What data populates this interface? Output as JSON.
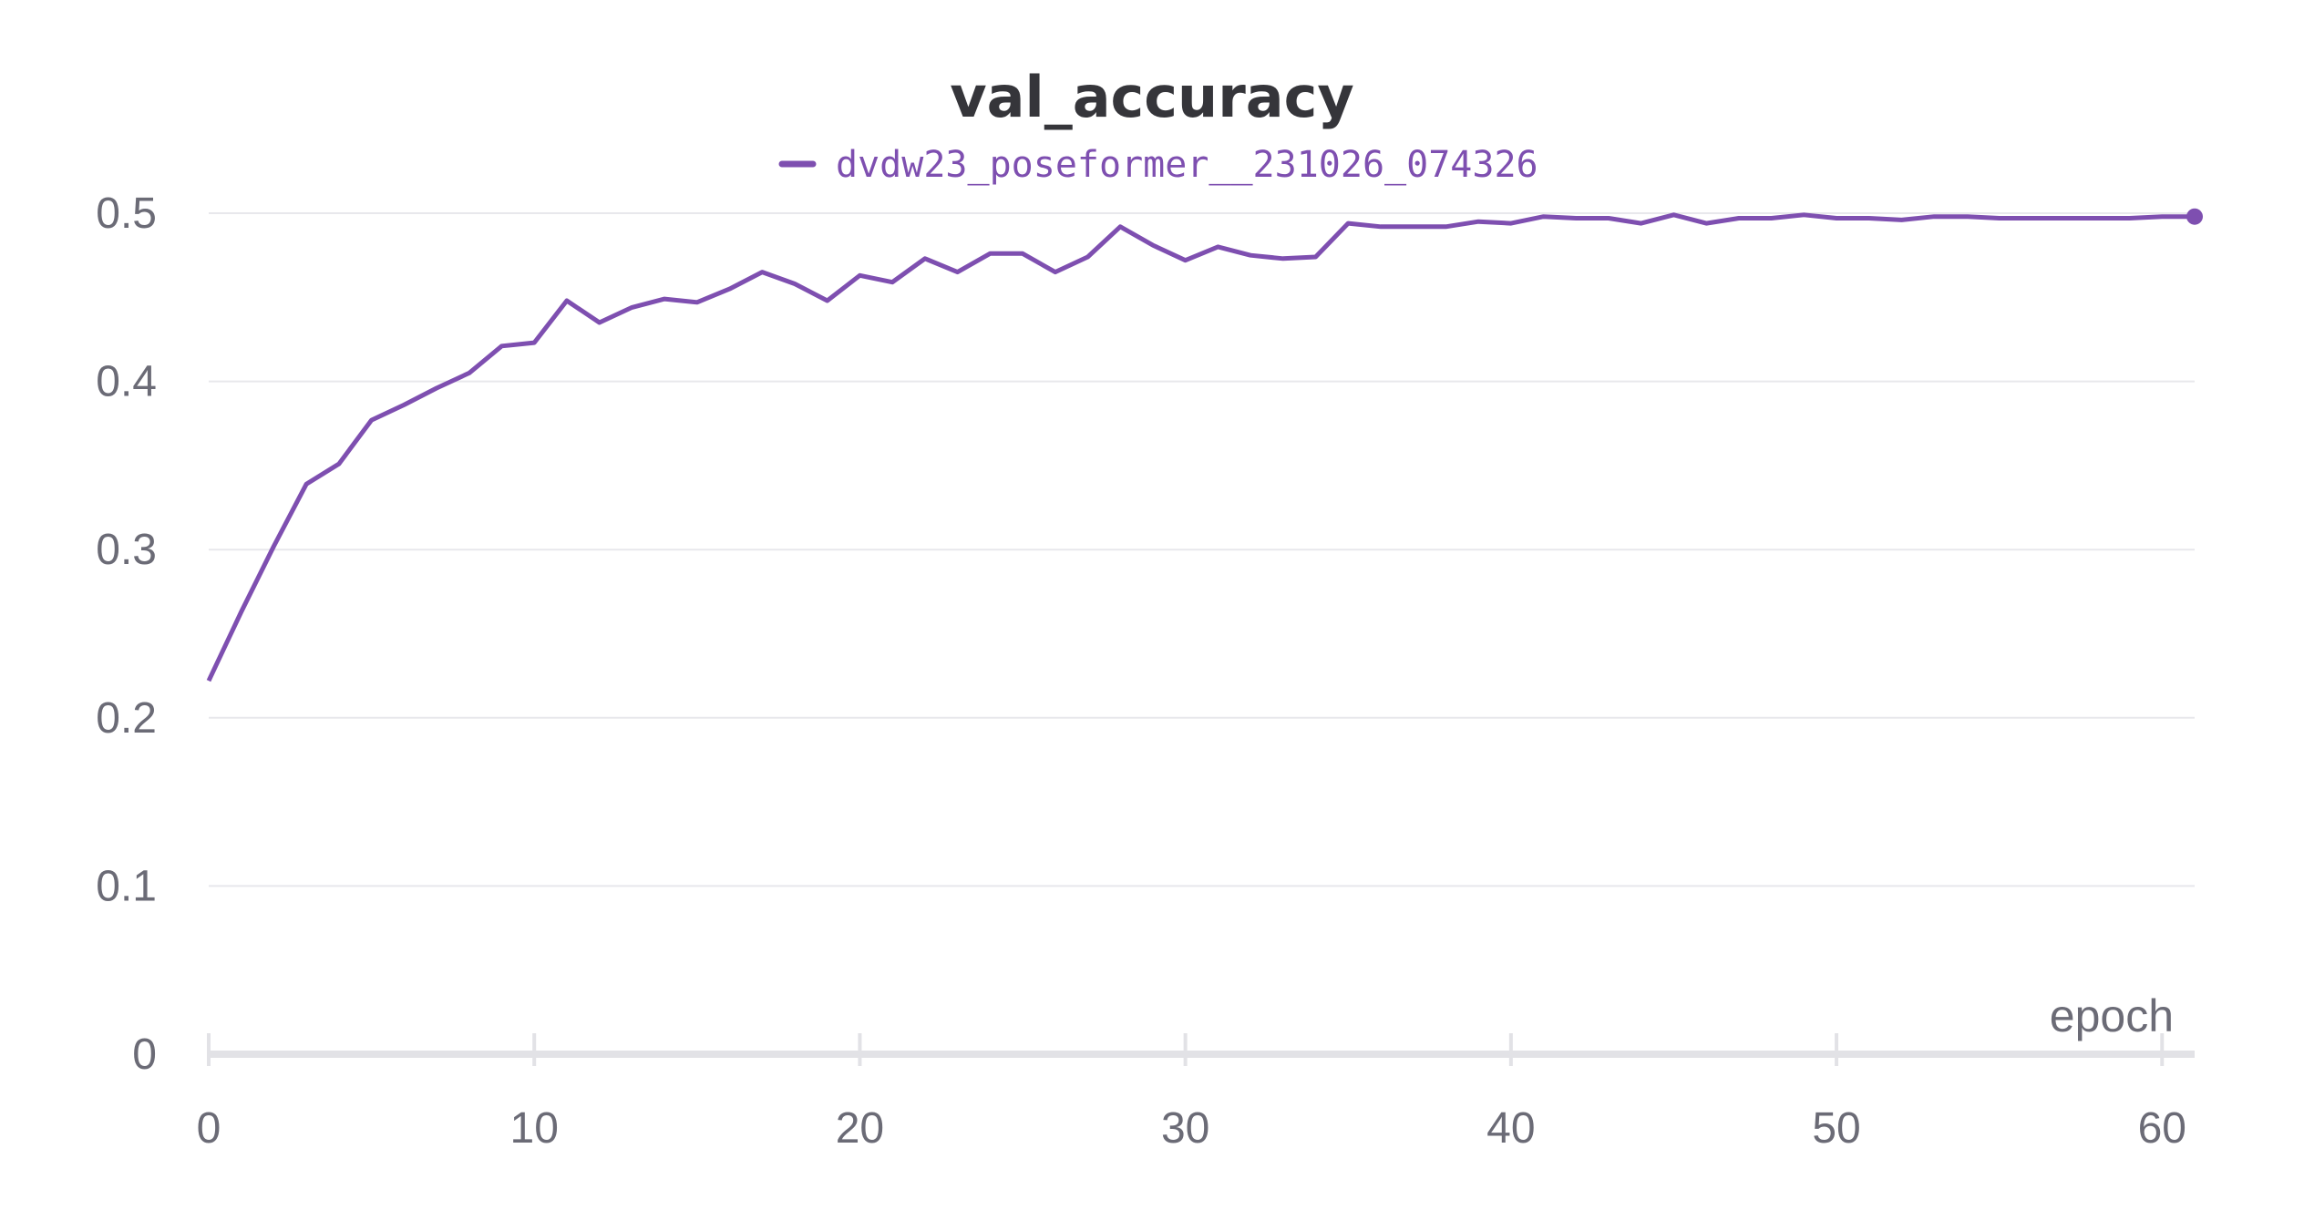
{
  "chart_data": {
    "type": "line",
    "title": "val_accuracy",
    "xlabel": "epoch",
    "ylabel": "",
    "xlim": [
      0,
      61
    ],
    "ylim": [
      0,
      0.5
    ],
    "x_ticks": [
      0,
      10,
      20,
      30,
      40,
      50,
      60
    ],
    "y_ticks": [
      0,
      0.1,
      0.2,
      0.3,
      0.4,
      0.5
    ],
    "y_tick_labels": [
      "0",
      "0.1",
      "0.2",
      "0.3",
      "0.4",
      "0.5"
    ],
    "grid": true,
    "legend_position": "top-center",
    "color": "#7e4fb0",
    "series": [
      {
        "name": "dvdw23_poseformer__231026_074326",
        "x": [
          0,
          1,
          2,
          3,
          4,
          5,
          6,
          7,
          8,
          9,
          10,
          11,
          12,
          13,
          14,
          15,
          16,
          17,
          18,
          19,
          20,
          21,
          22,
          23,
          24,
          25,
          26,
          27,
          28,
          29,
          30,
          31,
          32,
          33,
          34,
          35,
          36,
          37,
          38,
          39,
          40,
          41,
          42,
          43,
          44,
          45,
          46,
          47,
          48,
          49,
          50,
          51,
          52,
          53,
          54,
          55,
          56,
          57,
          58,
          59,
          60,
          61
        ],
        "y": [
          0.222,
          0.263,
          0.302,
          0.339,
          0.351,
          0.377,
          0.386,
          0.396,
          0.405,
          0.421,
          0.423,
          0.448,
          0.435,
          0.444,
          0.449,
          0.447,
          0.455,
          0.465,
          0.458,
          0.448,
          0.463,
          0.459,
          0.473,
          0.465,
          0.476,
          0.476,
          0.465,
          0.474,
          0.492,
          0.481,
          0.472,
          0.48,
          0.475,
          0.473,
          0.474,
          0.494,
          0.492,
          0.492,
          0.492,
          0.495,
          0.494,
          0.498,
          0.497,
          0.497,
          0.494,
          0.499,
          0.494,
          0.497,
          0.497,
          0.499,
          0.497,
          0.497,
          0.496,
          0.498,
          0.498,
          0.497,
          0.497,
          0.497,
          0.497,
          0.497,
          0.498,
          0.498
        ]
      }
    ]
  }
}
